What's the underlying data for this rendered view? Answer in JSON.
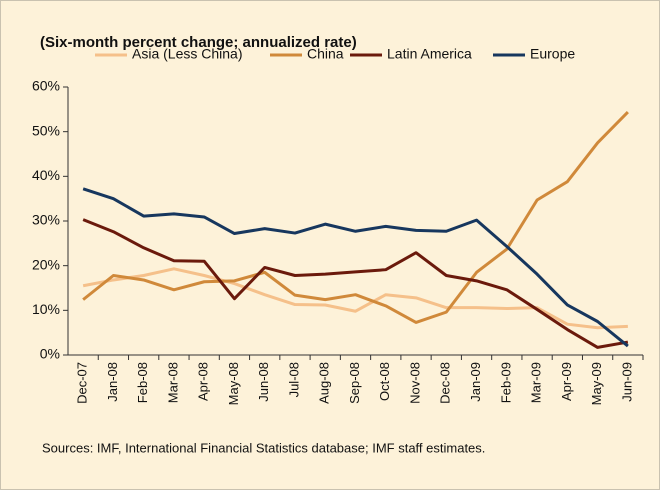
{
  "chart_data": {
    "type": "line",
    "title": "(Six-month percent change; annualized rate)",
    "categories": [
      "Dec-07",
      "Jan-08",
      "Feb-08",
      "Mar-08",
      "Apr-08",
      "May-08",
      "Jun-08",
      "Jul-08",
      "Aug-08",
      "Sep-08",
      "Oct-08",
      "Nov-08",
      "Dec-08",
      "Jan-09",
      "Feb-09",
      "Mar-09",
      "Apr-09",
      "May-09",
      "Jun-09"
    ],
    "series": [
      {
        "name": "Asia (Less China)",
        "color": "#f5c08a",
        "values": [
          15.5,
          16.8,
          17.8,
          19.3,
          17.8,
          16.0,
          13.5,
          11.3,
          11.2,
          9.8,
          13.5,
          12.8,
          10.6,
          10.6,
          10.4,
          10.6,
          6.9,
          6.1,
          6.4
        ]
      },
      {
        "name": "China",
        "color": "#d0893a",
        "values": [
          12.4,
          17.8,
          16.8,
          14.6,
          16.4,
          16.6,
          18.5,
          13.4,
          12.4,
          13.5,
          11.0,
          7.3,
          9.6,
          18.5,
          23.7,
          34.7,
          38.8,
          47.5,
          54.4
        ]
      },
      {
        "name": "Latin America",
        "color": "#6b1a0c",
        "values": [
          30.3,
          27.6,
          24.0,
          21.1,
          21.0,
          12.6,
          19.6,
          17.8,
          18.1,
          18.6,
          19.1,
          22.9,
          17.8,
          16.6,
          14.6,
          10.2,
          5.7,
          1.7,
          2.9
        ]
      },
      {
        "name": "Europe",
        "color": "#17375e",
        "values": [
          37.2,
          35.0,
          31.1,
          31.6,
          30.9,
          27.2,
          28.3,
          27.3,
          29.3,
          27.7,
          28.8,
          27.9,
          27.7,
          30.2,
          24.3,
          18.1,
          11.2,
          7.5,
          2.0
        ]
      }
    ],
    "ylim": [
      0,
      60
    ],
    "yticks": [
      {
        "value": 0,
        "label": "0%"
      },
      {
        "value": 10,
        "label": "10%"
      },
      {
        "value": 20,
        "label": "20%"
      },
      {
        "value": 30,
        "label": "30%"
      },
      {
        "value": 40,
        "label": "40%"
      },
      {
        "value": 50,
        "label": "50%"
      },
      {
        "value": 60,
        "label": "60%"
      }
    ],
    "note": "Sources: IMF, International Financial Statistics database; IMF staff estimates."
  }
}
